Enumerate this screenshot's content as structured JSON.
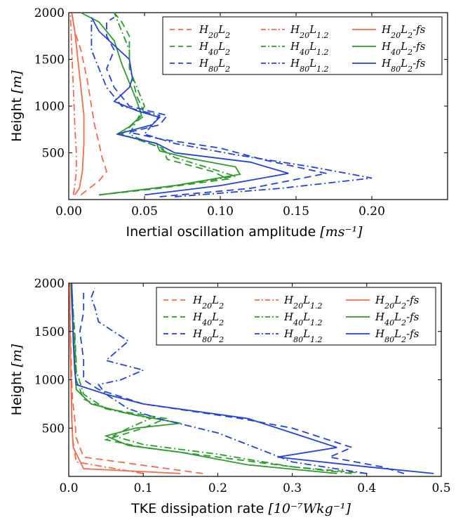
{
  "chart_data": [
    {
      "type": "line",
      "title": "",
      "xlabel": "Inertial oscillation amplitude",
      "xunit": "[ms⁻¹]",
      "ylabel": "Height",
      "yunit": "[m]",
      "xlim": [
        0,
        0.25
      ],
      "ylim": [
        0,
        2000
      ],
      "xticks": [
        "0.00",
        "0.05",
        "0.10",
        "0.15",
        "0.20"
      ],
      "yticks": [
        "500",
        "1000",
        "1500",
        "2000"
      ],
      "grid": false,
      "legend_position": "top-right",
      "series": [
        {
          "name": "H₂₀L₂",
          "color": "#f26b4a",
          "style": "dashed",
          "points": [
            [
              0.008,
              50
            ],
            [
              0.012,
              100
            ],
            [
              0.02,
              200
            ],
            [
              0.025,
              300
            ],
            [
              0.022,
              450
            ],
            [
              0.02,
              600
            ],
            [
              0.017,
              800
            ],
            [
              0.015,
              1000
            ],
            [
              0.012,
              1300
            ],
            [
              0.008,
              1600
            ],
            [
              0.004,
              1800
            ],
            [
              0.002,
              2000
            ]
          ]
        },
        {
          "name": "H₂₀L₁.₂",
          "color": "#f26b4a",
          "style": "dashdot",
          "points": [
            [
              0.003,
              50
            ],
            [
              0.004,
              150
            ],
            [
              0.005,
              300
            ],
            [
              0.005,
              500
            ],
            [
              0.004,
              800
            ],
            [
              0.003,
              1200
            ],
            [
              0.002,
              1600
            ],
            [
              0.001,
              2000
            ]
          ]
        },
        {
          "name": "H₂₀L₂-fs",
          "color": "#f26b4a",
          "style": "solid",
          "points": [
            [
              0.004,
              50
            ],
            [
              0.007,
              120
            ],
            [
              0.009,
              300
            ],
            [
              0.01,
              600
            ],
            [
              0.01,
              900
            ],
            [
              0.008,
              1200
            ],
            [
              0.006,
              1500
            ],
            [
              0.004,
              1800
            ],
            [
              0.002,
              2000
            ]
          ]
        },
        {
          "name": "H₄₀L₂",
          "color": "#2e9a2e",
          "style": "dashed",
          "points": [
            [
              0.02,
              50
            ],
            [
              0.06,
              120
            ],
            [
              0.105,
              220
            ],
            [
              0.095,
              300
            ],
            [
              0.065,
              430
            ],
            [
              0.062,
              550
            ],
            [
              0.035,
              700
            ],
            [
              0.042,
              800
            ],
            [
              0.05,
              900
            ],
            [
              0.048,
              1000
            ],
            [
              0.045,
              1100
            ],
            [
              0.042,
              1300
            ],
            [
              0.04,
              1500
            ],
            [
              0.04,
              1750
            ],
            [
              0.035,
              1900
            ],
            [
              0.03,
              2000
            ]
          ]
        },
        {
          "name": "H₄₀L₁.₂",
          "color": "#2e9a2e",
          "style": "dashdot",
          "points": [
            [
              0.02,
              50
            ],
            [
              0.07,
              150
            ],
            [
              0.11,
              250
            ],
            [
              0.09,
              350
            ],
            [
              0.07,
              450
            ],
            [
              0.06,
              550
            ],
            [
              0.04,
              700
            ],
            [
              0.045,
              850
            ],
            [
              0.05,
              1000
            ],
            [
              0.045,
              1200
            ],
            [
              0.04,
              1400
            ],
            [
              0.04,
              1600
            ],
            [
              0.035,
              1800
            ],
            [
              0.03,
              2000
            ]
          ]
        },
        {
          "name": "H₄₀L₂-fs",
          "color": "#2e9a2e",
          "style": "solid",
          "points": [
            [
              0.02,
              50
            ],
            [
              0.07,
              150
            ],
            [
              0.113,
              270
            ],
            [
              0.11,
              350
            ],
            [
              0.08,
              440
            ],
            [
              0.06,
              520
            ],
            [
              0.058,
              600
            ],
            [
              0.032,
              700
            ],
            [
              0.04,
              780
            ],
            [
              0.048,
              900
            ],
            [
              0.045,
              1050
            ],
            [
              0.04,
              1250
            ],
            [
              0.035,
              1450
            ],
            [
              0.03,
              1700
            ],
            [
              0.02,
              1900
            ],
            [
              0.008,
              2000
            ]
          ]
        },
        {
          "name": "H₈₀L₂",
          "color": "#2442d8",
          "style": "dashed",
          "points": [
            [
              0.06,
              30
            ],
            [
              0.12,
              120
            ],
            [
              0.17,
              280
            ],
            [
              0.13,
              420
            ],
            [
              0.1,
              550
            ],
            [
              0.06,
              650
            ],
            [
              0.04,
              720
            ],
            [
              0.06,
              800
            ],
            [
              0.065,
              900
            ],
            [
              0.04,
              1000
            ],
            [
              0.03,
              1200
            ],
            [
              0.025,
              1400
            ],
            [
              0.03,
              1600
            ],
            [
              0.025,
              1750
            ],
            [
              0.025,
              1900
            ],
            [
              0.03,
              1950
            ]
          ]
        },
        {
          "name": "H₈₀L₁.₂",
          "color": "#2442d8",
          "style": "dashdot",
          "points": [
            [
              0.07,
              30
            ],
            [
              0.14,
              120
            ],
            [
              0.2,
              230
            ],
            [
              0.16,
              350
            ],
            [
              0.11,
              480
            ],
            [
              0.07,
              600
            ],
            [
              0.05,
              700
            ],
            [
              0.055,
              800
            ],
            [
              0.06,
              900
            ],
            [
              0.035,
              1000
            ],
            [
              0.025,
              1200
            ],
            [
              0.02,
              1400
            ],
            [
              0.015,
              1600
            ],
            [
              0.015,
              1800
            ],
            [
              0.015,
              1950
            ]
          ]
        },
        {
          "name": "H₈₀L₂-fs",
          "color": "#2442d8",
          "style": "solid",
          "points": [
            [
              0.05,
              50
            ],
            [
              0.1,
              150
            ],
            [
              0.145,
              280
            ],
            [
              0.12,
              400
            ],
            [
              0.07,
              500
            ],
            [
              0.058,
              600
            ],
            [
              0.032,
              700
            ],
            [
              0.055,
              800
            ],
            [
              0.06,
              880
            ],
            [
              0.045,
              950
            ],
            [
              0.03,
              1050
            ],
            [
              0.04,
              1200
            ],
            [
              0.042,
              1300
            ],
            [
              0.04,
              1500
            ],
            [
              0.03,
              1650
            ],
            [
              0.02,
              1800
            ],
            [
              0.015,
              1950
            ]
          ]
        }
      ]
    },
    {
      "type": "line",
      "title": "",
      "xlabel": "TKE dissipation rate",
      "xunit": "[10⁻⁷Wkg⁻¹]",
      "ylabel": "Height",
      "yunit": "[m]",
      "xlim": [
        0,
        0.5
      ],
      "ylim": [
        0,
        2000
      ],
      "xticks": [
        "0.0",
        "0.1",
        "0.2",
        "0.3",
        "0.4",
        "0.5"
      ],
      "yticks": [
        "500",
        "1000",
        "1500",
        "2000"
      ],
      "grid": false,
      "legend_position": "top-right",
      "series": [
        {
          "name": "H₂₀L₂",
          "color": "#f26b4a",
          "style": "dashed",
          "points": [
            [
              0.18,
              30
            ],
            [
              0.02,
              200
            ],
            [
              0.01,
              400
            ],
            [
              0.008,
              600
            ],
            [
              0.005,
              800
            ],
            [
              0.004,
              1000
            ],
            [
              0.003,
              1300
            ],
            [
              0.002,
              1600
            ],
            [
              0.001,
              2000
            ]
          ]
        },
        {
          "name": "H₂₀L₁.₂",
          "color": "#f26b4a",
          "style": "dashdot",
          "points": [
            [
              0.1,
              30
            ],
            [
              0.01,
              150
            ],
            [
              0.005,
              400
            ],
            [
              0.004,
              700
            ],
            [
              0.003,
              1000
            ],
            [
              0.002,
              1400
            ],
            [
              0.001,
              2000
            ]
          ]
        },
        {
          "name": "H₂₀L₂-fs",
          "color": "#f26b4a",
          "style": "solid",
          "points": [
            [
              0.15,
              30
            ],
            [
              0.02,
              80
            ],
            [
              0.006,
              300
            ],
            [
              0.004,
              600
            ],
            [
              0.003,
              1000
            ],
            [
              0.002,
              1400
            ],
            [
              0.001,
              2000
            ]
          ]
        },
        {
          "name": "H₄₀L₂",
          "color": "#2e9a2e",
          "style": "dashed",
          "points": [
            [
              0.4,
              30
            ],
            [
              0.3,
              100
            ],
            [
              0.2,
              200
            ],
            [
              0.1,
              300
            ],
            [
              0.05,
              380
            ],
            [
              0.1,
              500
            ],
            [
              0.13,
              600
            ],
            [
              0.05,
              700
            ],
            [
              0.02,
              800
            ],
            [
              0.01,
              1000
            ],
            [
              0.01,
              1200
            ],
            [
              0.008,
              1500
            ],
            [
              0.005,
              1800
            ],
            [
              0.004,
              2000
            ]
          ]
        },
        {
          "name": "H₄₀L₁.₂",
          "color": "#2e9a2e",
          "style": "dashdot",
          "points": [
            [
              0.38,
              30
            ],
            [
              0.3,
              100
            ],
            [
              0.2,
              230
            ],
            [
              0.1,
              330
            ],
            [
              0.06,
              420
            ],
            [
              0.08,
              500
            ],
            [
              0.11,
              600
            ],
            [
              0.05,
              700
            ],
            [
              0.02,
              850
            ],
            [
              0.01,
              1100
            ],
            [
              0.008,
              1400
            ],
            [
              0.006,
              1700
            ],
            [
              0.004,
              2000
            ]
          ]
        },
        {
          "name": "H₄₀L₂-fs",
          "color": "#2e9a2e",
          "style": "solid",
          "points": [
            [
              0.36,
              30
            ],
            [
              0.24,
              120
            ],
            [
              0.15,
              250
            ],
            [
              0.08,
              320
            ],
            [
              0.05,
              420
            ],
            [
              0.09,
              500
            ],
            [
              0.15,
              550
            ],
            [
              0.08,
              650
            ],
            [
              0.03,
              750
            ],
            [
              0.01,
              900
            ],
            [
              0.008,
              1200
            ],
            [
              0.006,
              1500
            ],
            [
              0.004,
              1800
            ],
            [
              0.003,
              2000
            ]
          ]
        },
        {
          "name": "H₈₀L₂",
          "color": "#2442d8",
          "style": "dashed",
          "points": [
            [
              0.45,
              30
            ],
            [
              0.42,
              100
            ],
            [
              0.35,
              200
            ],
            [
              0.38,
              300
            ],
            [
              0.34,
              400
            ],
            [
              0.3,
              500
            ],
            [
              0.23,
              600
            ],
            [
              0.1,
              750
            ],
            [
              0.04,
              900
            ],
            [
              0.02,
              1000
            ],
            [
              0.02,
              1200
            ],
            [
              0.015,
              1500
            ],
            [
              0.02,
              1700
            ],
            [
              0.02,
              1900
            ]
          ]
        },
        {
          "name": "H₈₀L₁.₂",
          "color": "#2442d8",
          "style": "dashdot",
          "points": [
            [
              0.4,
              30
            ],
            [
              0.3,
              150
            ],
            [
              0.25,
              300
            ],
            [
              0.2,
              450
            ],
            [
              0.12,
              600
            ],
            [
              0.08,
              700
            ],
            [
              0.05,
              850
            ],
            [
              0.04,
              950
            ],
            [
              0.07,
              1000
            ],
            [
              0.1,
              1100
            ],
            [
              0.05,
              1200
            ],
            [
              0.08,
              1400
            ],
            [
              0.04,
              1600
            ],
            [
              0.035,
              1750
            ],
            [
              0.03,
              1850
            ],
            [
              0.035,
              1950
            ]
          ]
        },
        {
          "name": "H₈₀L₂-fs",
          "color": "#2442d8",
          "style": "solid",
          "points": [
            [
              0.49,
              30
            ],
            [
              0.4,
              100
            ],
            [
              0.28,
              200
            ],
            [
              0.36,
              300
            ],
            [
              0.3,
              450
            ],
            [
              0.24,
              600
            ],
            [
              0.1,
              750
            ],
            [
              0.05,
              850
            ],
            [
              0.01,
              950
            ],
            [
              0.008,
              1100
            ],
            [
              0.006,
              1400
            ],
            [
              0.005,
              1700
            ],
            [
              0.004,
              2000
            ]
          ]
        }
      ]
    }
  ]
}
